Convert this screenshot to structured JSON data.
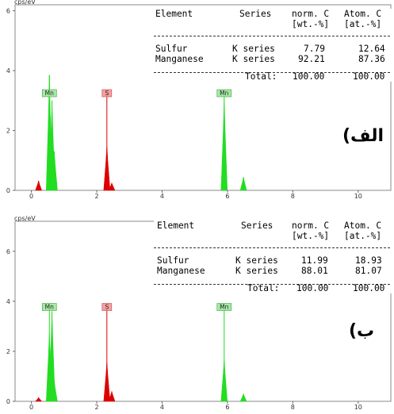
{
  "chart_data": [
    {
      "type": "bar",
      "panel_label": "الف)",
      "y_unit": "cps/eV",
      "xlim": [
        -0.5,
        11
      ],
      "ylim": [
        0,
        6.2
      ],
      "x_ticks": [
        "0",
        "2",
        "4",
        "6",
        "8",
        "10"
      ],
      "y_ticks": [
        "0",
        "2",
        "4",
        "6"
      ],
      "peaks": [
        {
          "x": 0.22,
          "height": 0.32,
          "color": "#dd0000"
        },
        {
          "x": 0.55,
          "height": 3.85,
          "color": "#22dd22",
          "label": "Mn"
        },
        {
          "x": 0.63,
          "height": 3.0,
          "color": "#22dd22"
        },
        {
          "x": 0.7,
          "height": 1.3,
          "color": "#22dd22"
        },
        {
          "x": 2.31,
          "height": 1.5,
          "color": "#dd0000",
          "label": "S"
        },
        {
          "x": 2.46,
          "height": 0.25,
          "color": "#dd0000"
        },
        {
          "x": 5.9,
          "height": 3.05,
          "color": "#22dd22",
          "label": "Mn"
        },
        {
          "x": 6.49,
          "height": 0.45,
          "color": "#22dd22"
        }
      ],
      "table": {
        "headers": [
          "Element",
          "Series",
          "norm. C",
          "Atom. C"
        ],
        "units": [
          "",
          "",
          "[wt.-%]",
          "[at.-%]"
        ],
        "rows": [
          {
            "element": "Sulfur",
            "series": "K series",
            "norm": "7.79",
            "atom": "12.64"
          },
          {
            "element": "Manganese",
            "series": "K series",
            "norm": "92.21",
            "atom": "87.36"
          }
        ],
        "total_label": "Total:",
        "total_norm": "100.00",
        "total_atom": "100.00"
      }
    },
    {
      "type": "bar",
      "panel_label": "ب)",
      "y_unit": "cps/eV",
      "xlim": [
        -0.5,
        11
      ],
      "ylim": [
        0,
        7.2
      ],
      "x_ticks": [
        "0",
        "2",
        "4",
        "6",
        "8",
        "10"
      ],
      "y_ticks": [
        "0",
        "2",
        "4",
        "6"
      ],
      "peaks": [
        {
          "x": 0.22,
          "height": 0.15,
          "color": "#dd0000"
        },
        {
          "x": 0.55,
          "height": 2.8,
          "color": "#22dd22",
          "label": "Mn"
        },
        {
          "x": 0.63,
          "height": 3.6,
          "color": "#22dd22"
        },
        {
          "x": 0.7,
          "height": 0.8,
          "color": "#22dd22"
        },
        {
          "x": 2.31,
          "height": 1.6,
          "color": "#dd0000",
          "label": "S"
        },
        {
          "x": 2.46,
          "height": 0.4,
          "color": "#dd0000"
        },
        {
          "x": 5.9,
          "height": 1.7,
          "color": "#22dd22",
          "label": "Mn"
        },
        {
          "x": 6.49,
          "height": 0.3,
          "color": "#22dd22"
        }
      ],
      "table": {
        "headers": [
          "Element",
          "Series",
          "norm. C",
          "Atom. C"
        ],
        "units": [
          "",
          "",
          "[wt.-%]",
          "[at.-%]"
        ],
        "rows": [
          {
            "element": "Sulfur",
            "series": "K series",
            "norm": "11.99",
            "atom": "18.93"
          },
          {
            "element": "Manganese",
            "series": "K series",
            "norm": "88.01",
            "atom": "81.07"
          }
        ],
        "total_label": "Total:",
        "total_norm": "100.00",
        "total_atom": "100.00"
      }
    }
  ]
}
